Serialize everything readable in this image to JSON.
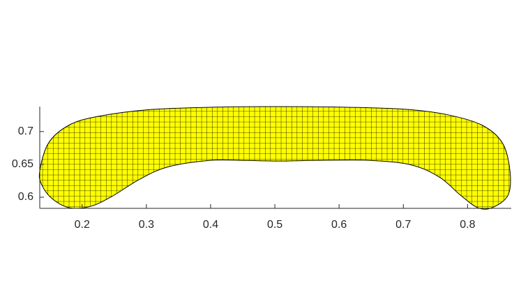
{
  "chart_data": {
    "type": "patch",
    "color": "#ffff00",
    "edge_color": "#000000",
    "mesh": true,
    "xlim": [
      0.134,
      0.868
    ],
    "ylim": [
      0.583,
      0.738
    ],
    "xticks": [
      0.2,
      0.3,
      0.4,
      0.5,
      0.6,
      0.7,
      0.8
    ],
    "yticks": [
      0.6,
      0.65,
      0.7
    ],
    "x": [
      0.134,
      0.148,
      0.18,
      0.224,
      0.3,
      0.398,
      0.507,
      0.615,
      0.702,
      0.767,
      0.822,
      0.854,
      0.866,
      0.863,
      0.838,
      0.816,
      0.789,
      0.757,
      0.713,
      0.648,
      0.561,
      0.507,
      0.452,
      0.398,
      0.333,
      0.289,
      0.246,
      0.213,
      0.18,
      0.153,
      0.137
    ],
    "y": [
      0.64,
      0.683,
      0.71,
      0.723,
      0.733,
      0.737,
      0.738,
      0.737,
      0.734,
      0.726,
      0.71,
      0.683,
      0.64,
      0.603,
      0.584,
      0.584,
      0.603,
      0.63,
      0.649,
      0.656,
      0.656,
      0.655,
      0.656,
      0.656,
      0.646,
      0.627,
      0.601,
      0.586,
      0.584,
      0.598,
      0.619
    ]
  }
}
